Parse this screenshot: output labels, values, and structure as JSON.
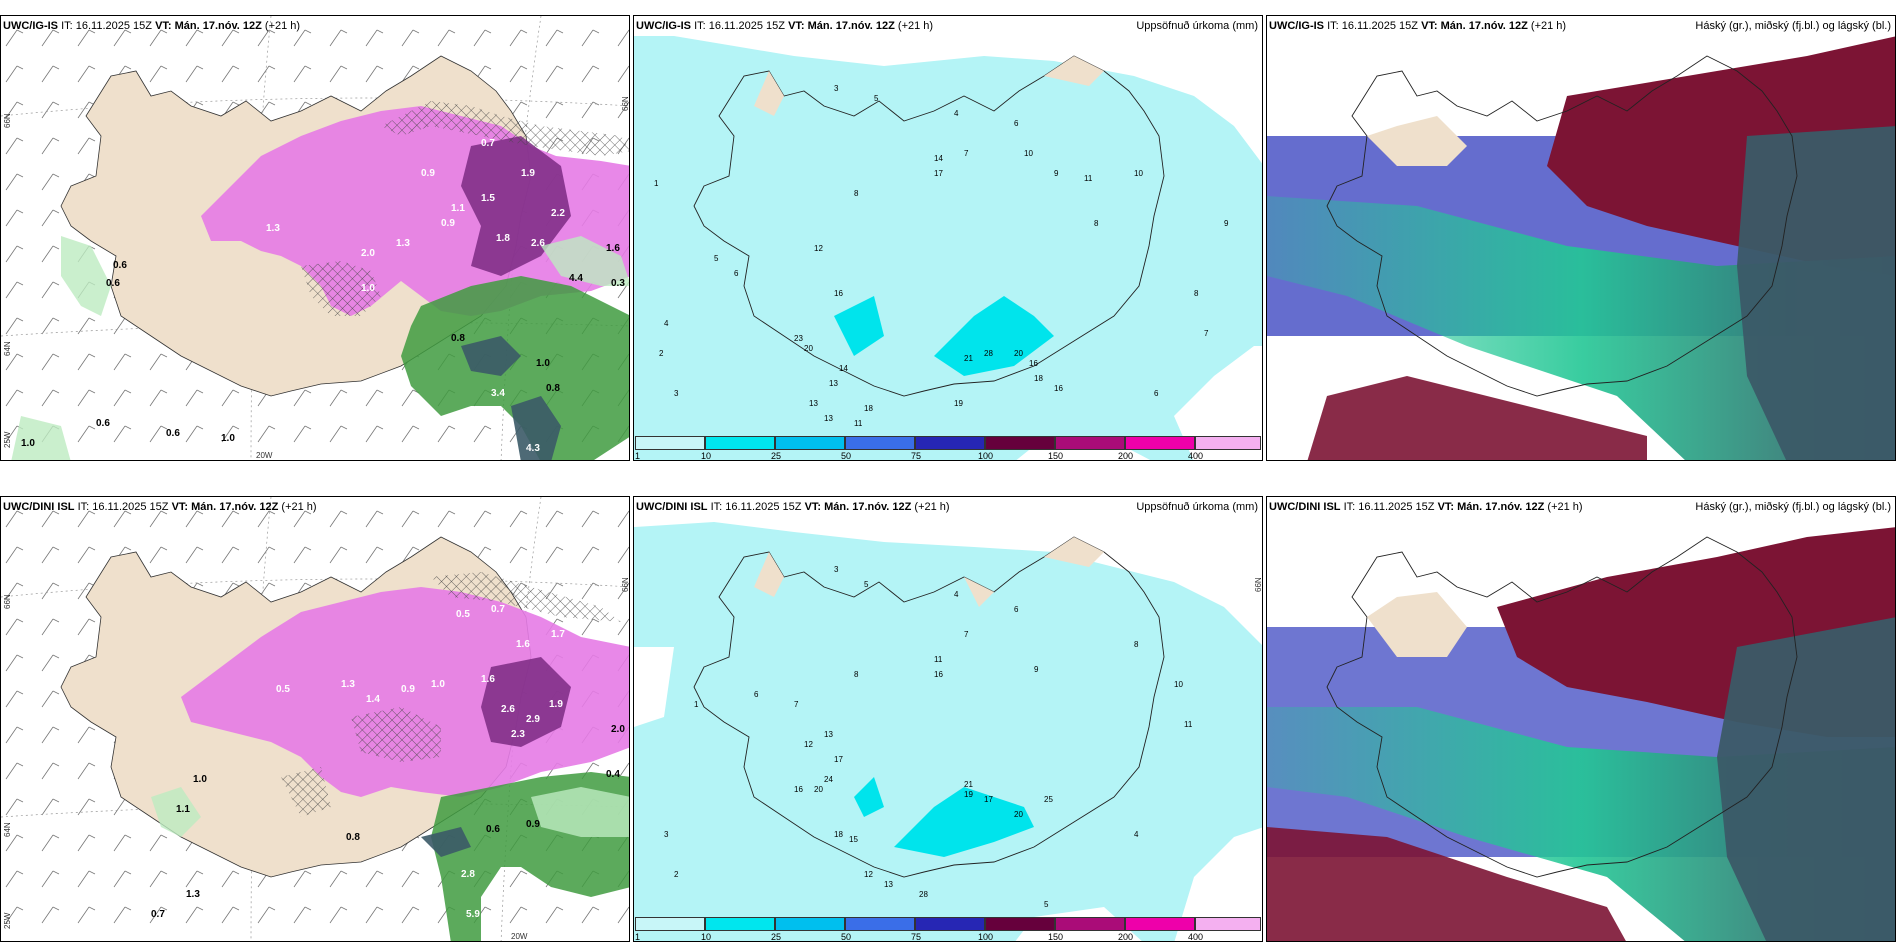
{
  "panels": [
    {
      "id": "p1",
      "model": "UWC/IG-IS",
      "it_label": "IT:",
      "it": "16.11.2025 15Z",
      "vt_label": "VT:",
      "vt": "Mán. 17.nóv. 12Z",
      "lead": "(+21 h)",
      "right_title": "",
      "axis": {
        "left_top": "66N",
        "left_mid": "64N",
        "left_bottom": "25W",
        "bottom": "20W",
        "right_top": "66N"
      }
    },
    {
      "id": "p2",
      "model": "UWC/IG-IS",
      "it_label": "IT:",
      "it": "16.11.2025 15Z",
      "vt_label": "VT:",
      "vt": "Mán. 17.nóv. 12Z",
      "lead": "(+21 h)",
      "right_title": "Uppsöfnuð úrkoma (mm)"
    },
    {
      "id": "p3",
      "model": "UWC/IG-IS",
      "it_label": "IT:",
      "it": "16.11.2025 15Z",
      "vt_label": "VT:",
      "vt": "Mán. 17.nóv. 12Z",
      "lead": "(+21 h)",
      "right_title": "Háský (gr.), miðský (fj.bl.) og lágský (bl.)"
    },
    {
      "id": "p4",
      "model": "UWC/DINI ISL",
      "it_label": "IT:",
      "it": "16.11.2025 15Z",
      "vt_label": "VT:",
      "vt": "Mán. 17.nóv. 12Z",
      "lead": "(+21 h)",
      "right_title": "",
      "axis": {
        "left_top": "66N",
        "left_mid": "64N",
        "left_bottom": "25W",
        "bottom": "20W",
        "right_top": "66N"
      }
    },
    {
      "id": "p5",
      "model": "UWC/DINI ISL",
      "it_label": "IT:",
      "it": "16.11.2025 15Z",
      "vt_label": "VT:",
      "vt": "Mán. 17.nóv. 12Z",
      "lead": "(+21 h)",
      "right_title": "Uppsöfnuð úrkoma (mm)",
      "axis": {
        "right_top": "66N"
      }
    },
    {
      "id": "p6",
      "model": "UWC/DINI ISL",
      "it_label": "IT:",
      "it": "16.11.2025 15Z",
      "vt_label": "VT:",
      "vt": "Mán. 17.nóv. 12Z",
      "lead": "(+21 h)",
      "right_title": "Háský (gr.), miðský (fj.bl.) og lágský (bl.)"
    }
  ],
  "colorbar": {
    "labels": [
      "1",
      "10",
      "25",
      "50",
      "75",
      "100",
      "150",
      "200",
      "400"
    ],
    "colors": [
      "#c8f6f8",
      "#00e6ee",
      "#00bfee",
      "#3a6ee8",
      "#2626b4",
      "#66003c",
      "#aa0c78",
      "#ee00aa",
      "#f4b0f0"
    ]
  },
  "p1_values": [
    "0.6",
    "0.6",
    "1.9",
    "1.5",
    "2.0",
    "1.3",
    "0.9",
    "2.2",
    "1.8",
    "2.6",
    "1.6",
    "3.4",
    "1.0",
    "0.8",
    "4.3",
    "0.6",
    "1.0",
    "0.6",
    "1.0",
    "1.0",
    "0.8",
    "0.7",
    "1.3",
    "4.4",
    "0.3",
    "0.9",
    "1.1"
  ],
  "p2_values": [
    "3",
    "5",
    "4",
    "6",
    "7",
    "8",
    "10",
    "14",
    "17",
    "9",
    "11",
    "8",
    "12",
    "16",
    "23",
    "20",
    "13",
    "14",
    "18",
    "21",
    "28",
    "20",
    "16",
    "19",
    "13",
    "11",
    "16",
    "13",
    "18",
    "8",
    "7",
    "6",
    "4",
    "3",
    "2",
    "1",
    "5",
    "6",
    "9",
    "10"
  ],
  "p4_values": [
    "0.5",
    "0.7",
    "1.6",
    "1.7",
    "2.6",
    "2.9",
    "1.0",
    "0.5",
    "2.3",
    "1.6",
    "0.9",
    "0.4",
    "2.0",
    "1.1",
    "1.0",
    "0.8",
    "0.7",
    "1.3",
    "2.8",
    "5.9",
    "0.6",
    "0.9",
    "1.3",
    "1.9",
    "1.4"
  ],
  "p5_values": [
    "3",
    "5",
    "4",
    "6",
    "7",
    "8",
    "11",
    "16",
    "13",
    "17",
    "24",
    "20",
    "12",
    "18",
    "15",
    "21",
    "19",
    "17",
    "25",
    "20",
    "28",
    "16",
    "9",
    "11",
    "13",
    "12",
    "5",
    "4",
    "6",
    "7",
    "8",
    "10",
    "3",
    "2",
    "1"
  ],
  "colors": {
    "land": "#efe0cc",
    "precip_light": "#b4f4f6",
    "precip_mid": "#00e4ec",
    "pink": "#e67be6",
    "purple": "#7b2a82",
    "green_light": "#bdebc1",
    "green": "#3f9b3f",
    "dark": "#3b5a67",
    "teal": "#23c795",
    "maroon": "#7c1434",
    "blue": "#4a54c6"
  }
}
